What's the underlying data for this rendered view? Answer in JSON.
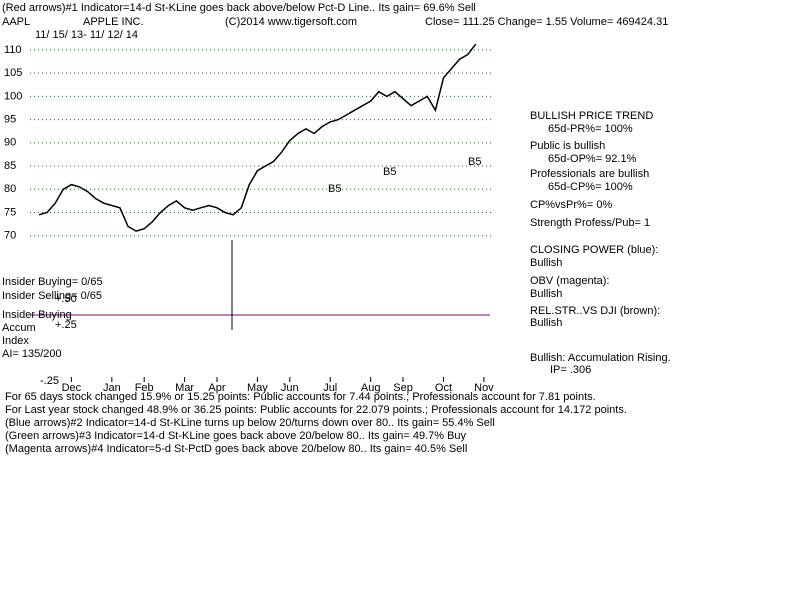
{
  "chart_data": {
    "type": "line",
    "title": "(Red arrows)#1 Indicator=14-d St-KLine goes back above/below Pct-D Line.. Its gain= 69.6% Sell",
    "texts": [
      "AAPL",
      "APPLE INC.",
      "(C)2014 www.tigersoft.com",
      "Close= 111.25 Change= 1.55 Volume= 469424.31",
      "11/ 15/ 13- 11/ 12/ 14",
      "BULLISH PRICE TREND",
      "65d-PR%= 100%",
      "Public is bullish",
      "65d-OP%= 92.1%",
      "Professionals are bullish",
      "65d-CP%= 100%",
      "CP%vsPr%=  0%",
      "Strength Profess/Pub= 1",
      "CLOSING POWER (blue):",
      "Bullish",
      "OBV (magenta):",
      "Bullish",
      "REL.STR..VS DJI (brown):",
      "Bullish",
      "Bullish: Accumulation Rising.",
      "IP=  .306",
      "Insider Buying= 0/65",
      "Insider Selling= 0/65",
      "Insider Buying",
      "Accum",
      "Index",
      "AI= 135/200",
      "+.50",
      "+.25",
      "-.25",
      "B5",
      "B5",
      "B5",
      "For 65 days stock changed  15.9% or  15.25 points:  Public accounts for  7.44 points.;  Professionals account for  7.81 points.",
      "For Last year stock changed  48.9% or  36.25 points:  Public accounts for  22.079 points.;  Professionals account for  14.172 points.",
      "(Blue arrows)#2 Indicator=14-d St-KLine turns up below 20/turns down over 80.. Its gain= 55.4% Sell",
      "(Green arrows)#3 Indicator=14-d St-KLine goes back above 20/below 80.. Its gain= 49.7% Buy",
      "(Magenta arrows)#4 Indicator=5-d St-PctD goes back above 20/below 80.. Its gain= 40.5% Sell"
    ],
    "values": [
      74.5,
      75,
      77,
      80,
      81,
      80.5,
      79.5,
      78,
      77,
      76.5,
      76,
      72,
      71,
      71.5,
      73,
      75,
      76.5,
      77.5,
      76,
      75.5,
      76,
      76.5,
      76,
      75,
      74.5,
      76,
      81,
      84,
      85,
      86,
      88,
      90.5,
      92,
      93,
      92,
      93.5,
      94.5,
      95,
      96,
      97,
      98,
      99,
      101,
      100,
      101,
      99.5,
      98,
      99,
      100,
      97,
      104,
      106,
      108,
      109,
      111.25
    ],
    "color": "#000000",
    "xlim": [
      -0.5,
      56
    ],
    "xticks": [
      {
        "value": 4,
        "label": "Dec"
      },
      {
        "value": 9,
        "label": "Jan"
      },
      {
        "value": 13,
        "label": "Feb"
      },
      {
        "value": 18,
        "label": "Mar"
      },
      {
        "value": 22,
        "label": "Apr"
      },
      {
        "value": 27,
        "label": "May"
      },
      {
        "value": 31,
        "label": "Jun"
      },
      {
        "value": 36,
        "label": "Jul"
      },
      {
        "value": 41,
        "label": "Aug"
      },
      {
        "value": 45,
        "label": "Sep"
      },
      {
        "value": 50,
        "label": "Oct"
      },
      {
        "value": 55,
        "label": "Nov"
      }
    ],
    "ylim": [
      68,
      113
    ],
    "yticks": [
      70,
      75,
      80,
      85,
      90,
      95,
      100,
      105,
      110
    ],
    "grid": true,
    "grid_color": "#008000"
  }
}
